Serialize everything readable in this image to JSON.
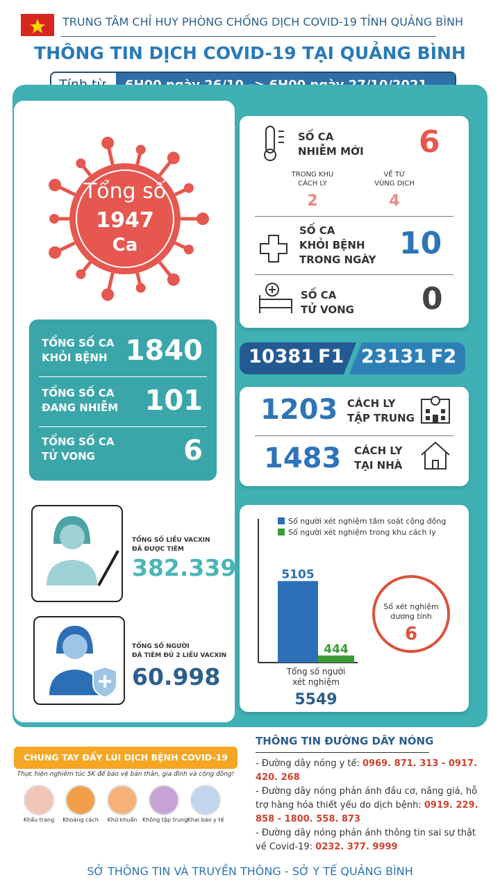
{
  "header": {
    "org": "TRUNG TÂM CHỈ HUY PHÒNG CHỐNG DỊCH COVID-19 TỈNH QUẢNG BÌNH",
    "title": "THÔNG TIN DỊCH COVID-19 TẠI QUẢNG BÌNH",
    "period_label": "Tính từ",
    "period": "6H00 ngày 26/10 –> 6H00 ngày 27/10/2021"
  },
  "total": {
    "label": "Tổng số",
    "value": "1947",
    "unit": "Ca"
  },
  "totals": [
    {
      "label_1": "TỔNG SỐ CA",
      "label_2": "KHỎI BỆNH",
      "value": "1840"
    },
    {
      "label_1": "TỔNG SỐ CA",
      "label_2": "ĐANG NHIỄM",
      "value": "101"
    },
    {
      "label_1": "TỔNG SỐ CA",
      "label_2": "TỬ VONG",
      "value": "6"
    }
  ],
  "new_cases": {
    "label_1": "SỐ CA",
    "label_2": "NHIỄM MỚI",
    "value": "6",
    "breakdown": [
      {
        "label_1": "TRONG KHU",
        "label_2": "CÁCH LY",
        "value": "2"
      },
      {
        "label_1": "VỀ TỪ",
        "label_2": "VÙNG DỊCH",
        "value": "4"
      }
    ]
  },
  "recovered": {
    "label_1": "SỐ CA",
    "label_2": "KHỎI BỆNH",
    "label_3": "TRONG NGÀY",
    "value": "10"
  },
  "deaths": {
    "label_1": "SỐ CA",
    "label_2": "TỬ VONG",
    "value": "0"
  },
  "contacts": [
    {
      "value": "10381",
      "label": "F1"
    },
    {
      "value": "23131",
      "label": "F2"
    }
  ],
  "isolation": [
    {
      "value": "1203",
      "label_1": "CÁCH LY",
      "label_2": "TẬP TRUNG"
    },
    {
      "value": "1483",
      "label_1": "CÁCH LY",
      "label_2": "TẠI NHÀ"
    }
  ],
  "vaccine": [
    {
      "label_1": "TỔNG SỐ LIỀU VACXIN",
      "label_2": "ĐÃ ĐƯỢC TIÊM",
      "value": "382.339"
    },
    {
      "label_1": "TỔNG SỐ NGƯỜI",
      "label_2": "ĐÃ TIÊM ĐỦ 2 LIỀU VACXIN",
      "value": "60.998"
    }
  ],
  "chart_data": {
    "type": "bar",
    "series": [
      {
        "name": "Số người xét nghiệm tầm soát cộng đồng",
        "color": "#2d6fb6",
        "values": [
          5105
        ]
      },
      {
        "name": "Số người xét nghiệm trong khu cách ly",
        "color": "#3b9b36",
        "values": [
          444
        ]
      }
    ],
    "ylim": [
      0,
      9000
    ],
    "total_label_1": "Tổng số người",
    "total_label_2": "xét nghiệm",
    "total": 5549,
    "positive_label_1": "Số xét nghiệm",
    "positive_label_2": "dương tính",
    "positive": 6
  },
  "campaign": {
    "title": "CHUNG TAY ĐẨY LÙI DỊCH BỆNH COVID-19",
    "subtitle": "Thực hiện nghiêm túc 5K để bảo vệ bản thân, gia đình và cộng đồng!",
    "items": [
      "Khẩu trang",
      "Khoảng cách",
      "Khử khuẩn",
      "Không tập trung",
      "Khai báo y tế"
    ]
  },
  "hotline": {
    "title": "THÔNG TIN ĐƯỜNG DÂY NÓNG",
    "groups": [
      {
        "label": "- Đường dây nóng y tế:",
        "numbers": "0969. 871. 313  -  0917. 420. 268"
      },
      {
        "label": "- Đường dây nóng phản ánh đầu cơ, nâng giá, hỗ trợ hàng hóa thiết yếu do dịch bệnh:",
        "numbers": "0919. 229. 858  -  1800. 558. 873"
      },
      {
        "label": "- Đường dây nóng phản ánh thông tin sai sự thật về Covid-19:",
        "numbers": "0232. 377. 9999"
      }
    ]
  },
  "footer": "SỞ THÔNG TIN VÀ TRUYỀN THÔNG - SỞ Y TẾ QUẢNG BÌNH"
}
